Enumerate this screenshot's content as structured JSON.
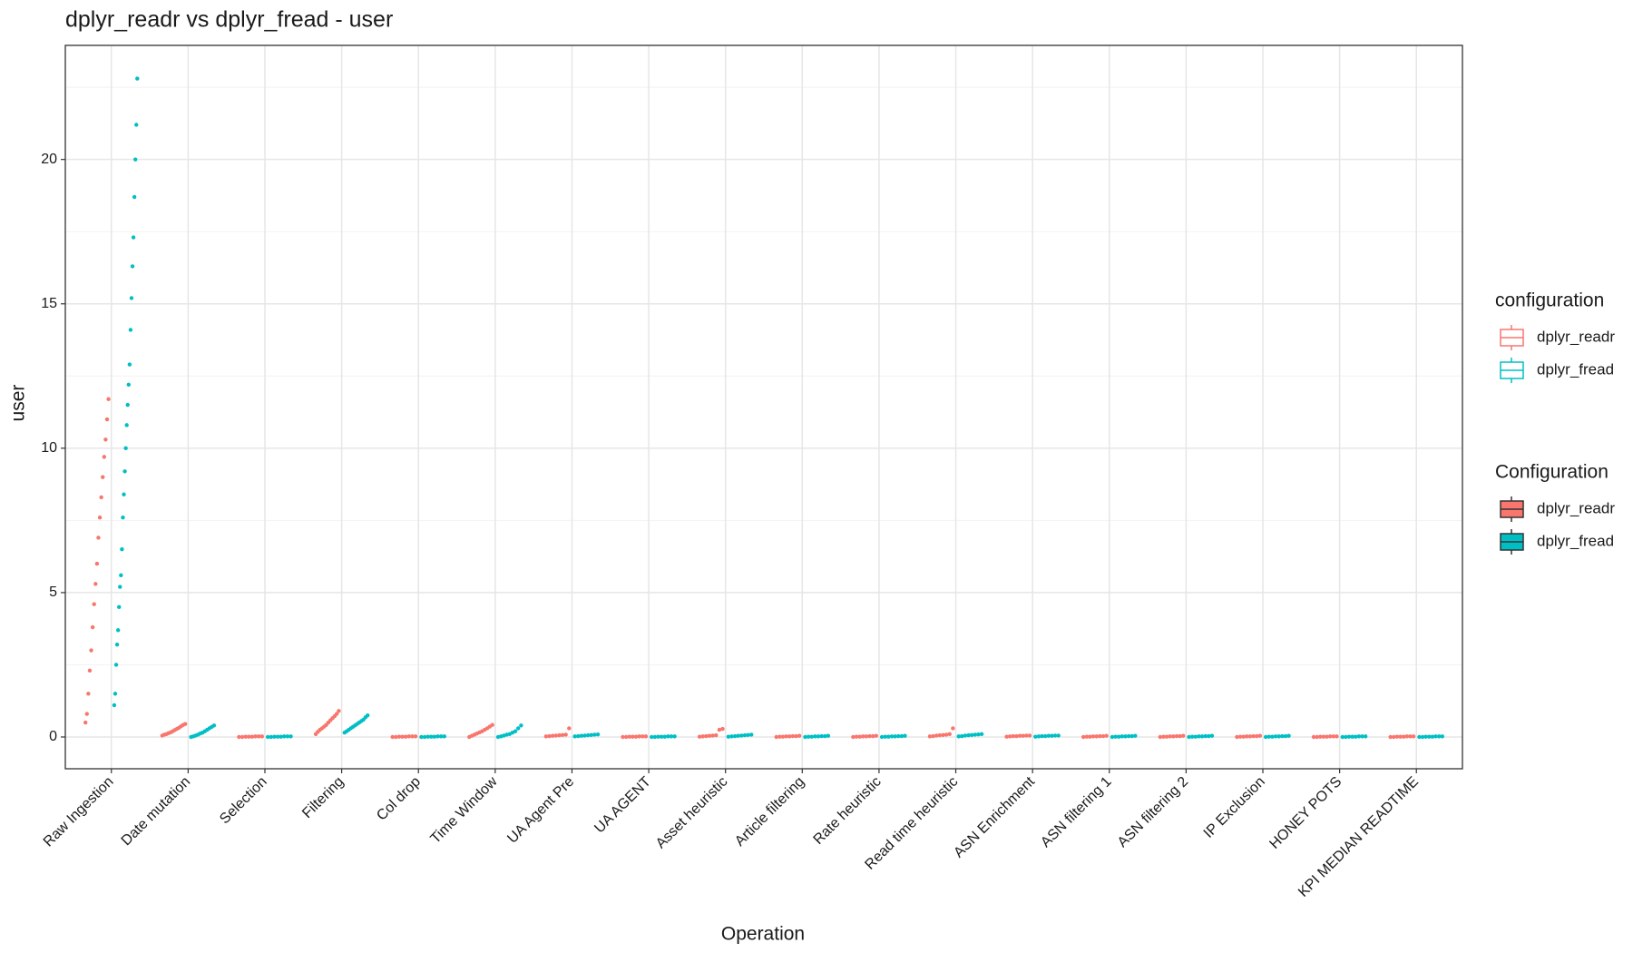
{
  "chart_data": {
    "type": "strip",
    "title": "dplyr_readr vs dplyr_fread - user",
    "x_label": "Operation",
    "y_label": "user",
    "categories": [
      "Raw Ingestion",
      "Date mutation",
      "Selection",
      "Filtering",
      "Col drop",
      "Time Window",
      "UA Agent Pre",
      "UA AGENT",
      "Asset heuristic",
      "Article filtering",
      "Rate heuristic",
      "Read time heuristic",
      "ASN Enrichment",
      "ASN filtering 1",
      "ASN filtering 2",
      "IP Exclusion",
      "HONEY POTS",
      "KPI MEDIAN READTIME"
    ],
    "series": [
      {
        "name": "dplyr_readr",
        "color": "#F8766D",
        "values": [
          [
            0.5,
            0.8,
            1.5,
            2.3,
            3.0,
            3.8,
            4.6,
            5.3,
            6.0,
            6.9,
            7.6,
            8.3,
            9.0,
            9.7,
            10.3,
            11.0,
            11.7
          ],
          [
            0.05,
            0.08,
            0.1,
            0.13,
            0.16,
            0.2,
            0.24,
            0.28,
            0.32,
            0.37,
            0.42,
            0.45
          ],
          [
            0,
            0,
            0.01,
            0.01,
            0.01,
            0.02,
            0.02,
            0.02
          ],
          [
            0.1,
            0.18,
            0.25,
            0.3,
            0.36,
            0.42,
            0.5,
            0.58,
            0.65,
            0.72,
            0.8,
            0.9
          ],
          [
            0,
            0,
            0.01,
            0.01,
            0.01,
            0.02,
            0.02,
            0.02
          ],
          [
            0,
            0.04,
            0.08,
            0.12,
            0.16,
            0.2,
            0.25,
            0.3,
            0.36,
            0.42
          ],
          [
            0.02,
            0.03,
            0.04,
            0.05,
            0.06,
            0.07,
            0.08,
            0.3
          ],
          [
            0,
            0,
            0.01,
            0.01,
            0.01,
            0.02,
            0.02,
            0.02
          ],
          [
            0.01,
            0.02,
            0.03,
            0.04,
            0.05,
            0.06,
            0.25,
            0.28
          ],
          [
            0,
            0.01,
            0.01,
            0.02,
            0.02,
            0.03,
            0.03,
            0.04
          ],
          [
            0,
            0.01,
            0.01,
            0.02,
            0.02,
            0.03,
            0.03,
            0.04
          ],
          [
            0.02,
            0.03,
            0.05,
            0.06,
            0.07,
            0.08,
            0.1,
            0.3
          ],
          [
            0.01,
            0.02,
            0.03,
            0.03,
            0.04,
            0.04,
            0.05,
            0.05
          ],
          [
            0,
            0.01,
            0.01,
            0.02,
            0.02,
            0.03,
            0.03,
            0.04
          ],
          [
            0,
            0.01,
            0.01,
            0.02,
            0.02,
            0.03,
            0.03,
            0.04
          ],
          [
            0,
            0.01,
            0.01,
            0.02,
            0.02,
            0.03,
            0.03,
            0.04
          ],
          [
            0,
            0,
            0.01,
            0.01,
            0.01,
            0.02,
            0.02,
            0.02
          ],
          [
            0,
            0,
            0.01,
            0.01,
            0.01,
            0.02,
            0.02,
            0.02
          ]
        ]
      },
      {
        "name": "dplyr_fread",
        "color": "#00BFC4",
        "values": [
          [
            1.1,
            1.5,
            2.5,
            3.2,
            3.7,
            4.5,
            5.2,
            5.6,
            6.5,
            7.6,
            8.4,
            9.2,
            10.0,
            10.8,
            11.5,
            12.2,
            12.9,
            14.1,
            15.2,
            16.3,
            17.3,
            18.7,
            20.0,
            21.2,
            22.8
          ],
          [
            0,
            0.02,
            0.05,
            0.08,
            0.12,
            0.15,
            0.2,
            0.25,
            0.3,
            0.35,
            0.4
          ],
          [
            0,
            0,
            0.01,
            0.01,
            0.01,
            0.02,
            0.02,
            0.02
          ],
          [
            0.15,
            0.2,
            0.25,
            0.3,
            0.35,
            0.4,
            0.45,
            0.5,
            0.55,
            0.6,
            0.68,
            0.75
          ],
          [
            0,
            0,
            0.01,
            0.01,
            0.01,
            0.02,
            0.02,
            0.02
          ],
          [
            0,
            0.02,
            0.05,
            0.08,
            0.1,
            0.15,
            0.2,
            0.3,
            0.4
          ],
          [
            0.02,
            0.03,
            0.04,
            0.05,
            0.06,
            0.07,
            0.08,
            0.09
          ],
          [
            0,
            0,
            0.01,
            0.01,
            0.01,
            0.02,
            0.02,
            0.02
          ],
          [
            0.01,
            0.02,
            0.03,
            0.04,
            0.05,
            0.06,
            0.07,
            0.08
          ],
          [
            0,
            0.01,
            0.01,
            0.02,
            0.02,
            0.03,
            0.03,
            0.04
          ],
          [
            0,
            0.01,
            0.01,
            0.02,
            0.02,
            0.03,
            0.03,
            0.04
          ],
          [
            0.02,
            0.03,
            0.05,
            0.06,
            0.07,
            0.08,
            0.09,
            0.1
          ],
          [
            0.01,
            0.02,
            0.03,
            0.03,
            0.04,
            0.04,
            0.05,
            0.05
          ],
          [
            0,
            0.01,
            0.01,
            0.02,
            0.02,
            0.03,
            0.03,
            0.04
          ],
          [
            0,
            0.01,
            0.01,
            0.02,
            0.02,
            0.03,
            0.03,
            0.04
          ],
          [
            0,
            0.01,
            0.01,
            0.02,
            0.02,
            0.03,
            0.03,
            0.04
          ],
          [
            0,
            0,
            0.01,
            0.01,
            0.01,
            0.02,
            0.02,
            0.02
          ],
          [
            0,
            0,
            0.01,
            0.01,
            0.01,
            0.02,
            0.02,
            0.02
          ]
        ]
      }
    ],
    "ylim": [
      -1.1,
      23.95
    ],
    "yticks": [
      0,
      5,
      10,
      15,
      20
    ],
    "minor_yticks": [
      2.5,
      7.5,
      12.5,
      17.5,
      22.5
    ],
    "grid": true,
    "legends": [
      {
        "title": "configuration",
        "style": "outline",
        "entries": [
          "dplyr_readr",
          "dplyr_fread"
        ]
      },
      {
        "title": "Configuration",
        "style": "filled",
        "entries": [
          "dplyr_readr",
          "dplyr_fread"
        ]
      }
    ],
    "legend_position": "right"
  }
}
